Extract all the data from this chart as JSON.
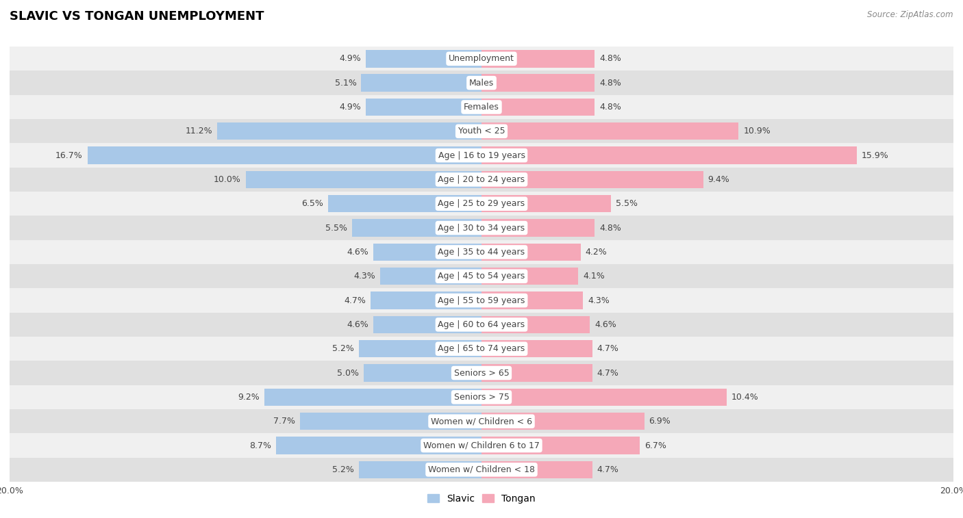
{
  "title": "SLAVIC VS TONGAN UNEMPLOYMENT",
  "source": "Source: ZipAtlas.com",
  "categories": [
    "Unemployment",
    "Males",
    "Females",
    "Youth < 25",
    "Age | 16 to 19 years",
    "Age | 20 to 24 years",
    "Age | 25 to 29 years",
    "Age | 30 to 34 years",
    "Age | 35 to 44 years",
    "Age | 45 to 54 years",
    "Age | 55 to 59 years",
    "Age | 60 to 64 years",
    "Age | 65 to 74 years",
    "Seniors > 65",
    "Seniors > 75",
    "Women w/ Children < 6",
    "Women w/ Children 6 to 17",
    "Women w/ Children < 18"
  ],
  "slavic": [
    4.9,
    5.1,
    4.9,
    11.2,
    16.7,
    10.0,
    6.5,
    5.5,
    4.6,
    4.3,
    4.7,
    4.6,
    5.2,
    5.0,
    9.2,
    7.7,
    8.7,
    5.2
  ],
  "tongan": [
    4.8,
    4.8,
    4.8,
    10.9,
    15.9,
    9.4,
    5.5,
    4.8,
    4.2,
    4.1,
    4.3,
    4.6,
    4.7,
    4.7,
    10.4,
    6.9,
    6.7,
    4.7
  ],
  "slavic_color": "#a8c8e8",
  "tongan_color": "#f5a8b8",
  "background_row_light": "#f0f0f0",
  "background_row_dark": "#e0e0e0",
  "axis_max": 20.0,
  "label_fontsize": 9,
  "category_fontsize": 9,
  "title_fontsize": 13,
  "legend_fontsize": 10
}
